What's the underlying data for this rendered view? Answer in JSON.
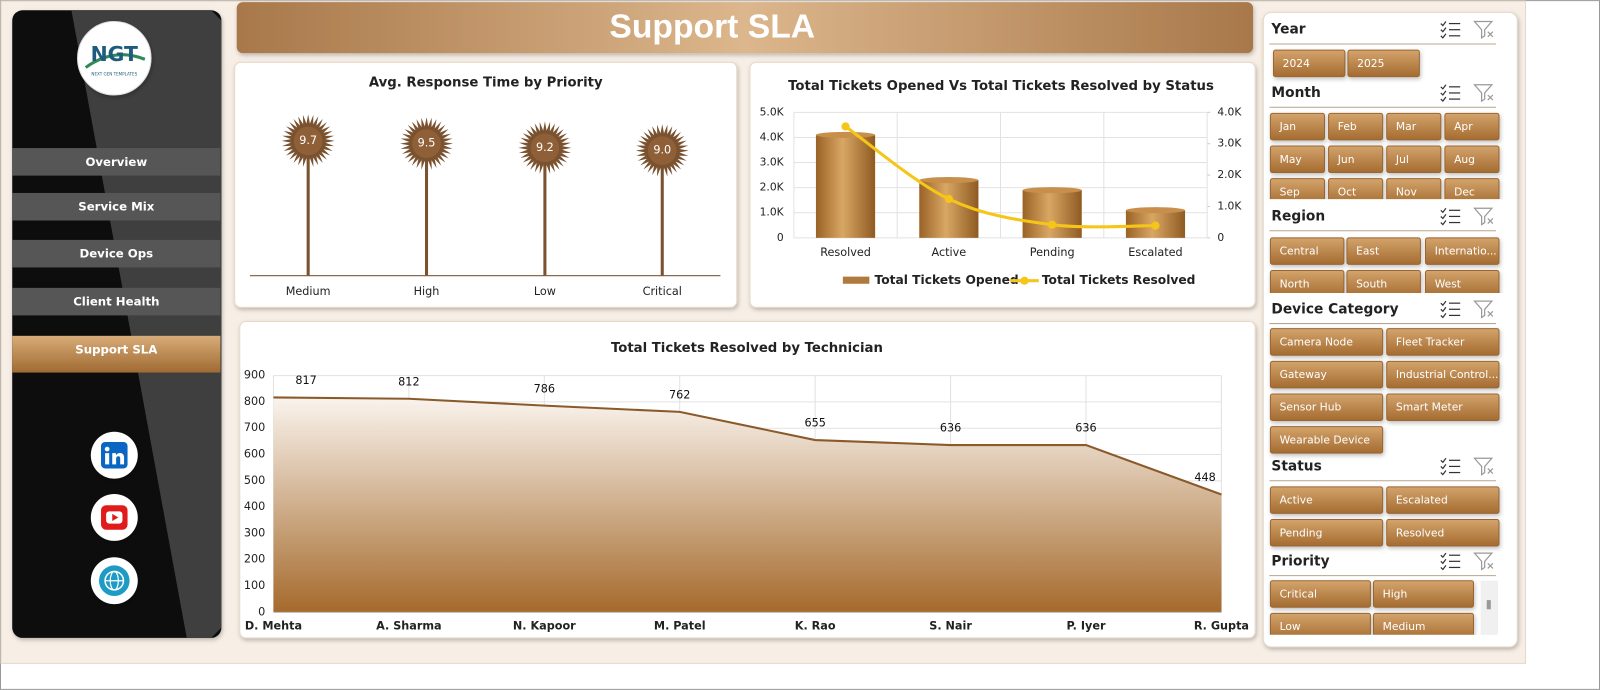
{
  "sidebar": {
    "logo": "NGT",
    "logo_sub": "NEXT GEN TEMPLATES",
    "nav": [
      "Overview",
      "Service Mix",
      "Device Ops",
      "Client Health",
      "Support SLA"
    ]
  },
  "header": {
    "title": "Support SLA"
  },
  "chart_data": [
    {
      "type": "lollipop",
      "title": "Avg. Response Time by Priority",
      "categories": [
        "Medium",
        "High",
        "Low",
        "Critical"
      ],
      "values": [
        9.7,
        9.5,
        9.2,
        9.0
      ],
      "value_labels": [
        "9.7",
        "9.5",
        "9.2",
        "9.0"
      ],
      "color": "#7a5230"
    },
    {
      "type": "combo",
      "title": "Total Tickets Opened Vs Total Tickets Resolved by Status",
      "categories": [
        "Resolved",
        "Active",
        "Pending",
        "Escalated"
      ],
      "series": [
        {
          "name": "Total Tickets Opened",
          "type": "bar",
          "color": "#b07a3e",
          "values": [
            4100,
            2300,
            1900,
            1100
          ]
        },
        {
          "name": "Total Tickets Resolved",
          "type": "line",
          "axis": "y2",
          "color": "#f5c518",
          "values": [
            3550,
            1240,
            420,
            390
          ]
        }
      ],
      "ylim": [
        0,
        5000
      ],
      "yticks": [
        0,
        {
          "value": 1000,
          "label": "1.0K"
        },
        {
          "value": 2000,
          "label": "2.0K"
        },
        {
          "value": 3000,
          "label": "3.0K"
        },
        {
          "value": 4000,
          "label": "4.0K"
        },
        {
          "value": 5000,
          "label": "5.0K"
        }
      ],
      "y2lim": [
        0,
        4000
      ],
      "y2ticks": [
        0,
        {
          "value": 1000,
          "label": "1.0K"
        },
        {
          "value": 2000,
          "label": "2.0K"
        },
        {
          "value": 3000,
          "label": "3.0K"
        },
        {
          "value": 4000,
          "label": "4.0K"
        }
      ],
      "grid": true,
      "legend": "bottom"
    },
    {
      "type": "area",
      "title": "Total Tickets Resolved by Technician",
      "categories": [
        "D. Mehta",
        "A. Sharma",
        "N. Kapoor",
        "M. Patel",
        "K. Rao",
        "S. Nair",
        "P. Iyer",
        "R. Gupta"
      ],
      "values": [
        817,
        812,
        786,
        762,
        655,
        636,
        636,
        448
      ],
      "color": "#8b5a2b",
      "ylim": [
        0,
        900
      ],
      "yticks": [
        0,
        100,
        200,
        300,
        400,
        500,
        600,
        700,
        800,
        900
      ],
      "grid": true
    }
  ],
  "slicers": [
    {
      "title": "Year",
      "items": [
        "2024",
        "2025"
      ]
    },
    {
      "title": "Month",
      "items": [
        "Jan",
        "Feb",
        "Mar",
        "Apr",
        "May",
        "Jun",
        "Jul",
        "Aug",
        "Sep",
        "Oct",
        "Nov",
        "Dec"
      ]
    },
    {
      "title": "Region",
      "items": [
        "Central",
        "East",
        "Internatio...",
        "North",
        "South",
        "West"
      ]
    },
    {
      "title": "Device Category",
      "items": [
        "Camera Node",
        "Fleet Tracker",
        "Gateway",
        "Industrial Control...",
        "Sensor Hub",
        "Smart Meter",
        "Wearable Device"
      ]
    },
    {
      "title": "Status",
      "items": [
        "Active",
        "Escalated",
        "Pending",
        "Resolved"
      ]
    },
    {
      "title": "Priority",
      "items": [
        "Critical",
        "High",
        "Low",
        "Medium"
      ]
    }
  ]
}
